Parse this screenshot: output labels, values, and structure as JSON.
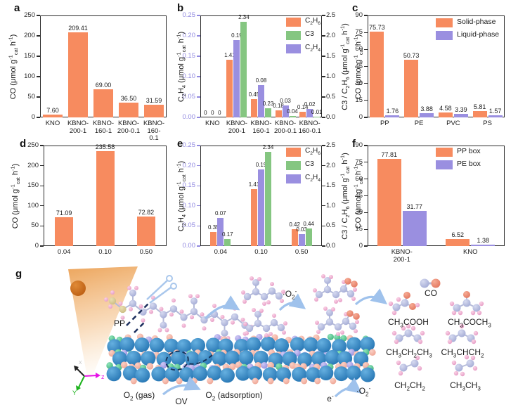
{
  "figure_title": "Photocatalytic plastic conversion figure",
  "colors": {
    "orange": "#F78B5F",
    "green": "#85C681",
    "purple": "#9A8FE0",
    "purple_axis": "#9189E0",
    "frame": "#2b2b2b",
    "arrow_blue": "#9FC2EC",
    "sun_orange": "#C2660F",
    "dash_navy": "#1C2F5E"
  },
  "chart_data": [
    {
      "type": "bar",
      "panel": "a",
      "ylabel": "CO (μmol g^{-1}_{cat} h^{-1})",
      "ylim": [
        0,
        250
      ],
      "yticks": [
        "0",
        "50",
        "100",
        "150",
        "200",
        "250"
      ],
      "categories": [
        [
          "KNO"
        ],
        [
          "KBNO-",
          "200-1"
        ],
        [
          "KBNO-",
          "160-1"
        ],
        [
          "KBNO-",
          "200-0.1"
        ],
        [
          "KBNO-",
          "160-0.1"
        ]
      ],
      "values": [
        7.6,
        209.41,
        69.0,
        36.5,
        31.59
      ],
      "labels": [
        "7.60",
        "209.41",
        "69.00",
        "36.50",
        "31.59"
      ],
      "color": "#F78B5F"
    },
    {
      "type": "grouped-bar-dual-axis",
      "panel": "b",
      "left_axis": {
        "label": "C_{2}H_{4} (μmol g^{-1}_{cat} h^{-1})",
        "lim": [
          0,
          0.25
        ],
        "ticks": [
          "0.00",
          "0.05",
          "0.10",
          "0.15",
          "0.20",
          "0.25"
        ],
        "color": "#9189E0"
      },
      "right_axis": {
        "label": "C3 / C_{2}H_{6} (μmol g^{-1}_{cat} h^{-1})",
        "lim": [
          0,
          2.5
        ],
        "ticks": [
          "0.0",
          "0.5",
          "1.0",
          "1.5",
          "2.0",
          "2.5"
        ],
        "color": "#2b2b2b"
      },
      "categories": [
        [
          "KNO"
        ],
        [
          "KBNO-",
          "200-1"
        ],
        [
          "KBNO-",
          "160-1"
        ],
        [
          "KBNO-",
          "200-0.1"
        ],
        [
          "KBNO-",
          "160-0.1"
        ]
      ],
      "series": [
        {
          "name": "C_{2}H_{6}",
          "axis": "right",
          "color": "#F78B5F",
          "values": [
            0,
            1.41,
            0.45,
            0.18,
            0.14
          ],
          "labels": [
            "0",
            "1.41",
            "0.45",
            "0.18",
            "0.14"
          ]
        },
        {
          "name": "C_{2}H_{4}",
          "axis": "left",
          "color": "#9A8FE0",
          "values": [
            0,
            0.19,
            0.08,
            0.03,
            0.02
          ],
          "labels": [
            "0",
            "0.19",
            "0.08",
            "0.03",
            "0.02"
          ]
        },
        {
          "name": "C3",
          "axis": "right",
          "color": "#85C681",
          "values": [
            0,
            2.34,
            0.23,
            0.04,
            0.01
          ],
          "labels": [
            "0",
            "2.34",
            "0.23",
            "0.04",
            "0.01"
          ]
        }
      ],
      "legend": [
        {
          "name": "C_{2}H_{6}",
          "color": "#F78B5F"
        },
        {
          "name": "C3",
          "color": "#85C681"
        },
        {
          "name": "C_{2}H_{4}",
          "color": "#9A8FE0"
        }
      ],
      "legend_position": "top-right"
    },
    {
      "type": "grouped-bar",
      "panel": "c",
      "ylabel": "CO (μmol g^{-1}_{cat} h^{-1})",
      "ylim": [
        0,
        90
      ],
      "yticks": [
        "0",
        "15",
        "30",
        "45",
        "60",
        "75",
        "90"
      ],
      "categories": [
        [
          "PP"
        ],
        [
          "PE"
        ],
        [
          "PVC"
        ],
        [
          "PS"
        ]
      ],
      "series": [
        {
          "name": "Solid-phase",
          "color": "#F78B5F",
          "values": [
            75.73,
            50.73,
            4.58,
            5.81
          ],
          "labels": [
            "75.73",
            "50.73",
            "4.58",
            "5.81"
          ]
        },
        {
          "name": "Liquid-phase",
          "color": "#9A8FE0",
          "values": [
            1.76,
            3.88,
            3.39,
            1.57
          ],
          "labels": [
            "1.76",
            "3.88",
            "3.39",
            "1.57"
          ]
        }
      ],
      "legend": [
        {
          "name": "Solid-phase",
          "color": "#F78B5F"
        },
        {
          "name": "Liquid-phase",
          "color": "#9A8FE0"
        }
      ],
      "legend_position": "top-right"
    },
    {
      "type": "bar",
      "panel": "d",
      "ylabel": "CO (μmol g^{-1}_{cat} h^{-1})",
      "ylim": [
        0,
        250
      ],
      "yticks": [
        "0",
        "50",
        "100",
        "150",
        "200",
        "250"
      ],
      "categories": [
        [
          "0.04"
        ],
        [
          "0.10"
        ],
        [
          "0.50"
        ]
      ],
      "values": [
        71.09,
        235.58,
        72.82
      ],
      "labels": [
        "71.09",
        "235.58",
        "72.82"
      ],
      "color": "#F78B5F"
    },
    {
      "type": "grouped-bar-dual-axis",
      "panel": "e",
      "left_axis": {
        "label": "C_{2}H_{4} (μmol g^{-1}_{cat} h^{-1})",
        "lim": [
          0,
          0.25
        ],
        "ticks": [
          "0.00",
          "0.05",
          "0.10",
          "0.15",
          "0.20",
          "0.25"
        ],
        "color": "#9189E0"
      },
      "right_axis": {
        "label": "C3 / C_{2}H_{6} (μmol g^{-1}_{cat} h^{-1})",
        "lim": [
          0,
          2.5
        ],
        "ticks": [
          "0.0",
          "0.5",
          "1.0",
          "1.5",
          "2.0",
          "2.5"
        ],
        "color": "#2b2b2b"
      },
      "categories": [
        [
          "0.04"
        ],
        [
          "0.10"
        ],
        [
          "0.50"
        ]
      ],
      "series": [
        {
          "name": "C_{2}H_{6}",
          "axis": "right",
          "color": "#F78B5F",
          "values": [
            0.35,
            1.41,
            0.42
          ],
          "labels": [
            "0.35",
            "1.41",
            "0.42"
          ]
        },
        {
          "name": "C_{2}H_{4}",
          "axis": "left",
          "color": "#9A8FE0",
          "values": [
            0.07,
            0.19,
            0.03
          ],
          "labels": [
            "0.07",
            "0.19",
            "0.03"
          ]
        },
        {
          "name": "C3",
          "axis": "right",
          "color": "#85C681",
          "values": [
            0.17,
            2.34,
            0.44
          ],
          "labels": [
            "0.17",
            "2.34",
            "0.44"
          ]
        }
      ],
      "legend": [
        {
          "name": "C_{2}H_{6}",
          "color": "#F78B5F"
        },
        {
          "name": "C3",
          "color": "#85C681"
        },
        {
          "name": "C_{2}H_{4}",
          "color": "#9A8FE0"
        }
      ],
      "legend_position": "top-right"
    },
    {
      "type": "grouped-bar",
      "panel": "f",
      "ylabel": "CO (μmol g^{-1}_{cat} h^{-1})",
      "ylim": [
        0,
        90
      ],
      "yticks": [
        "0",
        "15",
        "30",
        "45",
        "60",
        "75",
        "90"
      ],
      "categories": [
        [
          "KBNO-",
          "200-1"
        ],
        [
          "KNO"
        ]
      ],
      "series": [
        {
          "name": "PP box",
          "color": "#F78B5F",
          "values": [
            77.81,
            6.52
          ],
          "labels": [
            "77.81",
            "6.52"
          ]
        },
        {
          "name": "PE box",
          "color": "#9A8FE0",
          "values": [
            31.77,
            1.38
          ],
          "labels": [
            "31.77",
            "1.38"
          ]
        }
      ],
      "legend": [
        {
          "name": "PP box",
          "color": "#F78B5F"
        },
        {
          "name": "PE box",
          "color": "#9A8FE0"
        }
      ],
      "legend_position": "top-right"
    }
  ],
  "mechanism": {
    "panel": "g",
    "pp": "PP",
    "superoxide": "·O_{2}^{-}",
    "o2_gas": "O_{2} (gas)",
    "ov": "OV",
    "o2_adsorption": "O_{2} (adsorption)",
    "electron": "e^{-}",
    "co": "CO",
    "products": [
      "CH_{3}COOH",
      "CH_{3}COCH_{3}",
      "CH_{3}CH_{2}CH_{3}",
      "CH_{3}CHCH_{2}",
      "CH_{2}CH_{2}",
      "CH_{3}CH_{3}"
    ],
    "axes": {
      "x": "x",
      "y": "Y",
      "z": "z"
    }
  }
}
